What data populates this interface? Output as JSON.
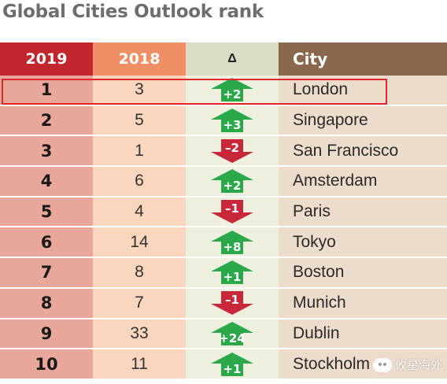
{
  "title": "Global Cities Outlook rank",
  "headers": {
    "rank_2019": "2019",
    "rank_2018": "2018",
    "delta": "Δ",
    "city": "City"
  },
  "colors": {
    "up": "#2aa84a",
    "down": "#c8283a",
    "highlight": "#e0262b"
  },
  "chart_data": {
    "type": "table",
    "title": "Global Cities Outlook rank",
    "columns": [
      "2019",
      "2018",
      "Δ",
      "City"
    ],
    "rows": [
      {
        "rank_2019": "1",
        "rank_2018": "3",
        "change": "+2",
        "direction": "up",
        "city": "London"
      },
      {
        "rank_2019": "2",
        "rank_2018": "5",
        "change": "+3",
        "direction": "up",
        "city": "Singapore"
      },
      {
        "rank_2019": "3",
        "rank_2018": "1",
        "change": "–2",
        "direction": "down",
        "city": "San Francisco"
      },
      {
        "rank_2019": "4",
        "rank_2018": "6",
        "change": "+2",
        "direction": "up",
        "city": "Amsterdam"
      },
      {
        "rank_2019": "5",
        "rank_2018": "4",
        "change": "–1",
        "direction": "down",
        "city": "Paris"
      },
      {
        "rank_2019": "6",
        "rank_2018": "14",
        "change": "+8",
        "direction": "up",
        "city": "Tokyo"
      },
      {
        "rank_2019": "7",
        "rank_2018": "8",
        "change": "+1",
        "direction": "up",
        "city": "Boston"
      },
      {
        "rank_2019": "8",
        "rank_2018": "7",
        "change": "–1",
        "direction": "down",
        "city": "Munich"
      },
      {
        "rank_2019": "9",
        "rank_2018": "33",
        "change": "+24",
        "direction": "up",
        "city": "Dublin"
      },
      {
        "rank_2019": "10",
        "rank_2018": "11",
        "change": "+1",
        "direction": "up",
        "city": "Stockholm"
      }
    ],
    "highlighted_row": "London"
  },
  "watermark": {
    "text": "攸星海外",
    "icon": "wechat-icon"
  }
}
